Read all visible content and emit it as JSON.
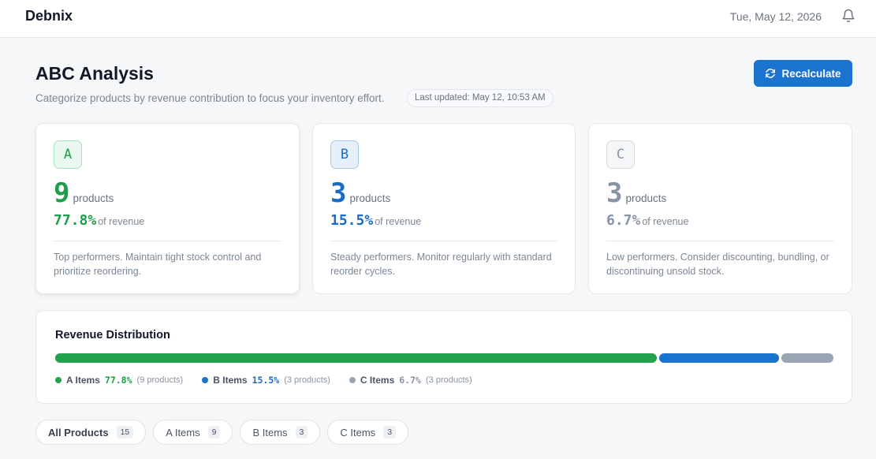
{
  "app": {
    "brand": "Debnix",
    "date": "Tue, May 12, 2026"
  },
  "header": {
    "title": "ABC Analysis",
    "subtitle": "Categorize products by revenue contribution to focus your inventory effort.",
    "last_updated": "Last updated: May 12, 10:53 AM",
    "recalculate_label": "Recalculate"
  },
  "cards": [
    {
      "tier": "A",
      "count": "9",
      "count_label": "products",
      "pct": "77.8%",
      "pct_label": "of revenue",
      "desc": "Top performers. Maintain tight stock control and prioritize reordering.",
      "color": "#1e9e4a"
    },
    {
      "tier": "B",
      "count": "3",
      "count_label": "products",
      "pct": "15.5%",
      "pct_label": "of revenue",
      "desc": "Steady performers. Monitor regularly with standard reorder cycles.",
      "color": "#1a6cc4"
    },
    {
      "tier": "C",
      "count": "3",
      "count_label": "products",
      "pct": "6.7%",
      "pct_label": "of revenue",
      "desc": "Low performers. Consider discounting, bundling, or discontinuing unsold stock.",
      "color": "#8794a6"
    }
  ],
  "distribution": {
    "title": "Revenue Distribution",
    "segments": [
      {
        "name": "A Items",
        "share": 77.8,
        "pct": "77.8%",
        "count": "(9 products)",
        "color": "#22a24c"
      },
      {
        "name": "B Items",
        "share": 15.5,
        "pct": "15.5%",
        "count": "(3 products)",
        "color": "#1a73cf"
      },
      {
        "name": "C Items",
        "share": 6.7,
        "pct": "6.7%",
        "count": "(3 products)",
        "color": "#9aa5b4"
      }
    ]
  },
  "filters": [
    {
      "label": "All Products",
      "count": "15"
    },
    {
      "label": "A Items",
      "count": "9"
    },
    {
      "label": "B Items",
      "count": "3"
    },
    {
      "label": "C Items",
      "count": "3"
    }
  ],
  "icons": {
    "notifications": "bell-icon",
    "recalculate": "refresh-icon"
  }
}
